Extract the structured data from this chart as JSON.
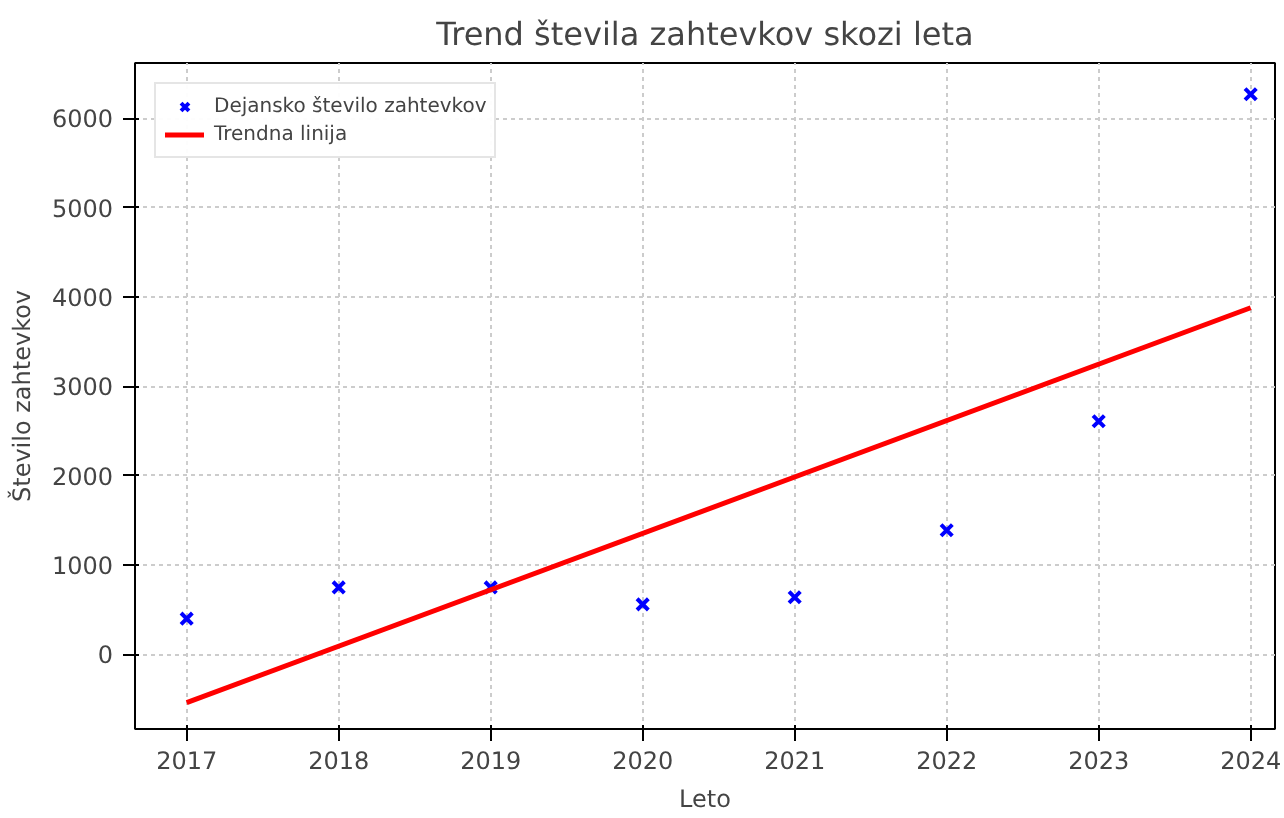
{
  "chart_data": {
    "type": "scatter",
    "title": "Trend števila zahtevkov skozi leta",
    "xlabel": "Leto",
    "ylabel": "Število zahtevkov",
    "x": [
      2017,
      2018,
      2019,
      2020,
      2021,
      2022,
      2023,
      2024
    ],
    "series": [
      {
        "name": "Dejansko število zahtevkov",
        "color": "#0000ff",
        "marker": "cross",
        "values": [
          400,
          750,
          750,
          560,
          640,
          1390,
          2610,
          6270
        ]
      },
      {
        "name": "Trendna linija",
        "color": "#ff0000",
        "type": "line",
        "x": [
          2017,
          2024
        ],
        "values": [
          -540,
          3880
        ]
      }
    ],
    "xlim": [
      2016.66,
      2024.16
    ],
    "ylim": [
      -835,
      6620
    ],
    "xticks": [
      2017,
      2018,
      2019,
      2020,
      2021,
      2022,
      2023,
      2024
    ],
    "yticks": [
      0,
      1000,
      2000,
      3000,
      4000,
      5000,
      6000
    ],
    "grid": true,
    "legend": "top left"
  }
}
